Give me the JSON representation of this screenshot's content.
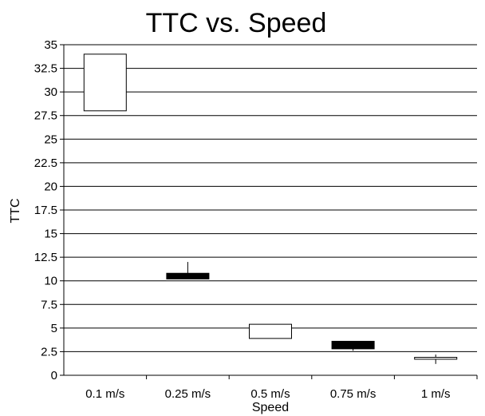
{
  "chart_data": {
    "type": "box",
    "title": "TTC vs. Speed",
    "xlabel": "Speed",
    "ylabel": "TTC",
    "ylim": [
      0,
      35
    ],
    "y_ticks": [
      "0",
      "2.5",
      "5",
      "7.5",
      "10",
      "12.5",
      "15",
      "17.5",
      "20",
      "22.5",
      "25",
      "27.5",
      "30",
      "32.5",
      "35"
    ],
    "categories": [
      "0.1 m/s",
      "0.25 m/s",
      "0.5 m/s",
      "0.75 m/s",
      "1 m/s"
    ],
    "boxes": [
      {
        "category": "0.1 m/s",
        "q1": 28,
        "median": 28,
        "q3": 34,
        "whisker_low": 28,
        "whisker_high": 34,
        "fill": "#ffffff"
      },
      {
        "category": "0.25 m/s",
        "q1": 10.2,
        "median": 10.5,
        "q3": 10.8,
        "whisker_low": 10.2,
        "whisker_high": 12,
        "fill": "#000000"
      },
      {
        "category": "0.5 m/s",
        "q1": 3.9,
        "median": 3.9,
        "q3": 5.4,
        "whisker_low": 3.9,
        "whisker_high": 5.4,
        "fill": "#ffffff"
      },
      {
        "category": "0.75 m/s",
        "q1": 2.8,
        "median": 3.2,
        "q3": 3.6,
        "whisker_low": 2.6,
        "whisker_high": 3.6,
        "fill": "#000000"
      },
      {
        "category": "1 m/s",
        "q1": 1.7,
        "median": 1.8,
        "q3": 1.9,
        "whisker_low": 1.2,
        "whisker_high": 2.2,
        "fill": "#ffffff"
      }
    ],
    "grid": true,
    "grid_axis": "y",
    "colors": {
      "axis": "#000000",
      "grid": "#000000",
      "box_outline": "#000000"
    }
  }
}
